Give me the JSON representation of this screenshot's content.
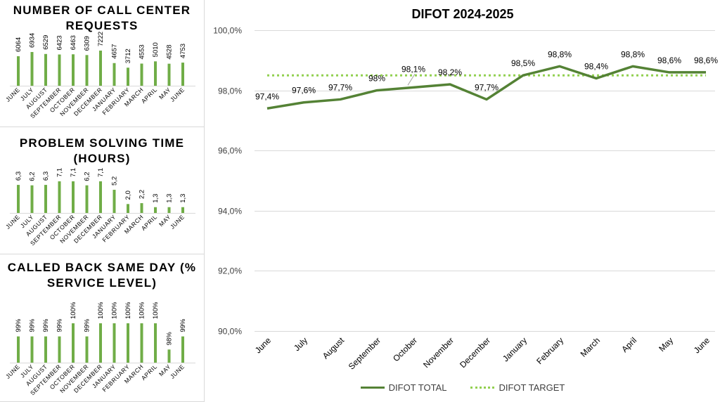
{
  "colors": {
    "bar": "#70ad47",
    "line_total": "#548235",
    "line_target": "#92d050",
    "grid": "#d9d9d9",
    "text": "#000000",
    "axis_text": "#404040"
  },
  "main": {
    "title": "DIFOT 2024-2025",
    "legend": [
      "DIFOT TOTAL",
      "DIFOT TARGET"
    ]
  },
  "chart_data": [
    {
      "type": "bar",
      "title": "NUMBER OF CALL CENTER REQUESTS",
      "categories": [
        "JUNE",
        "JULY",
        "AUGUST",
        "SEPTEMBER",
        "OCTOBER",
        "NOVEMBER",
        "DECEMBER",
        "JANUARY",
        "FEBRUARY",
        "MARCH",
        "APRIL",
        "MAY",
        "JUNE"
      ],
      "values": [
        6064,
        6934,
        6529,
        6423,
        6463,
        6309,
        7222,
        4657,
        3712,
        4553,
        5010,
        4528,
        4753
      ],
      "labels": [
        "6064",
        "6934",
        "6529",
        "6423",
        "6463",
        "6309",
        "7222",
        "4657",
        "3712",
        "4553",
        "5010",
        "4528",
        "4753"
      ],
      "ylim": [
        0,
        7222
      ],
      "grid": false,
      "legend": "none"
    },
    {
      "type": "bar",
      "title": "PROBLEM SOLVING TIME (HOURS)",
      "categories": [
        "JUNE",
        "JULY",
        "AUGUST",
        "SEPTEMBER",
        "OCTOBER",
        "NOVEMBER",
        "DECEMBER",
        "JANUARY",
        "FEBRUARY",
        "MARCH",
        "APRIL",
        "MAY",
        "JUNE"
      ],
      "values": [
        6.3,
        6.2,
        6.3,
        7.1,
        7.1,
        6.2,
        7.1,
        5.2,
        2.0,
        2.2,
        1.3,
        1.3,
        1.3
      ],
      "labels": [
        "6,3",
        "6,2",
        "6,3",
        "7,1",
        "7,1",
        "6,2",
        "7,1",
        "5,2",
        "2,0",
        "2,2",
        "1,3",
        "1,3",
        "1,3"
      ],
      "ylim": [
        0,
        7.1
      ],
      "grid": false,
      "legend": "none"
    },
    {
      "type": "bar",
      "title": "CALLED BACK SAME DAY (% SERVICE LEVEL)",
      "categories": [
        "JUNE",
        "JULY",
        "AUGUST",
        "SEPTEMBER",
        "OCTOBER",
        "NOVEMBER",
        "DECEMBER",
        "JANUARY",
        "FEBRUARY",
        "MARCH",
        "APRIL",
        "MAY",
        "JUNE"
      ],
      "values": [
        99,
        99,
        99,
        99,
        100,
        99,
        100,
        100,
        100,
        100,
        100,
        98,
        99
      ],
      "labels": [
        "99%",
        "99%",
        "99%",
        "99%",
        "100%",
        "99%",
        "100%",
        "100%",
        "100%",
        "100%",
        "100%",
        "98%",
        "99%"
      ],
      "ylim": [
        97,
        100
      ],
      "grid": false,
      "legend": "none"
    },
    {
      "type": "line",
      "title": "DIFOT 2024-2025",
      "categories": [
        "June",
        "July",
        "August",
        "September",
        "October",
        "November",
        "December",
        "January",
        "February",
        "March",
        "April",
        "May",
        "June"
      ],
      "series": [
        {
          "name": "DIFOT TOTAL",
          "values": [
            97.4,
            97.6,
            97.7,
            98.0,
            98.1,
            98.2,
            97.7,
            98.5,
            98.8,
            98.4,
            98.8,
            98.6,
            98.6
          ],
          "labels": [
            "97,4%",
            "97,6%",
            "97,7%",
            "98%",
            "98,1%",
            "98,2%",
            "97,7%",
            "98,5%",
            "98,8%",
            "98,4%",
            "98,8%",
            "98,6%",
            "98,6%"
          ]
        },
        {
          "name": "DIFOT TARGET",
          "values": [
            98.5,
            98.5,
            98.5,
            98.5,
            98.5,
            98.5,
            98.5,
            98.5,
            98.5,
            98.5,
            98.5,
            98.5,
            98.5
          ]
        }
      ],
      "ylim": [
        90,
        100
      ],
      "yticks": [
        "90,0%",
        "92,0%",
        "94,0%",
        "96,0%",
        "98,0%",
        "100,0%"
      ],
      "grid": true,
      "legend": "bottom"
    }
  ]
}
